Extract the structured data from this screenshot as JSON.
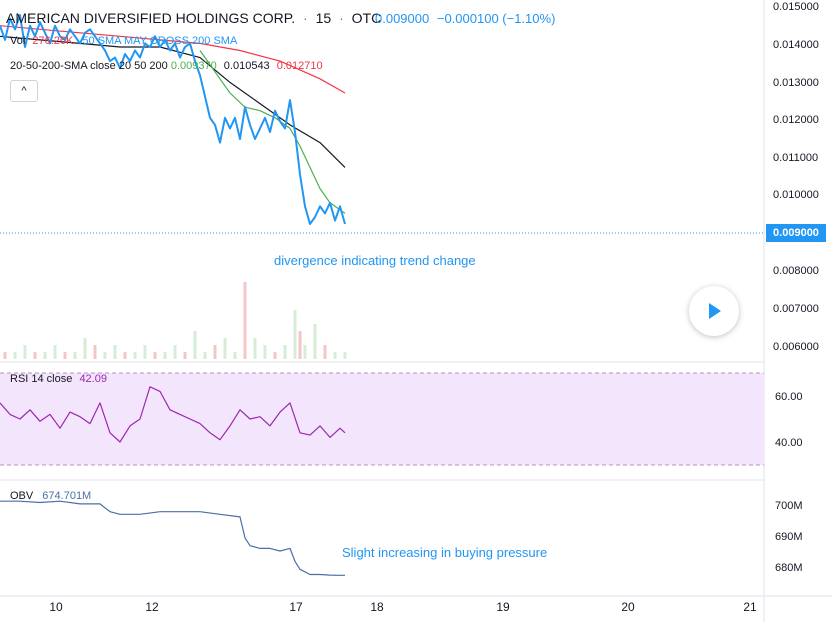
{
  "header": {
    "symbol": "AMERICAN DIVERSIFIED HOLDINGS CORP.",
    "interval": "15",
    "exchange": "OTC",
    "sep": "·",
    "price": "0.009000",
    "change": "−0.000100 (−1.10%)"
  },
  "volume": {
    "label": "Vol",
    "value": "276.26K",
    "overlay": "50 SMA MAY CROSS 200 SMA"
  },
  "sma": {
    "label": "20-50-200-SMA close 20 50 200",
    "v20": "0.009370",
    "v50": "0.010543",
    "v200": "0.012710"
  },
  "collapse_glyph": "^",
  "rsi": {
    "label": "RSI 14 close",
    "value": "42.09"
  },
  "obv": {
    "label": "OBV",
    "value": "674.701M"
  },
  "annotations": {
    "divergence": "divergence indicating trend change",
    "buying": "Slight increasing in buying pressure"
  },
  "last_price_tag": "0.009000",
  "colors": {
    "price": "#2196f3",
    "sma20": "#4caf50",
    "sma50": "#131722",
    "sma200": "#f23645",
    "rsi": "#9c27b0",
    "rsi_band": "#f3e5fc",
    "obv": "#4a6fa5",
    "volume_up": "#d6ecd6",
    "volume_down": "#f6c6c6"
  },
  "chart_data": {
    "type": "line",
    "x_axis": {
      "ticks": [
        "10",
        "12",
        "17",
        "18",
        "19",
        "20",
        "21"
      ]
    },
    "price": {
      "ylim": [
        0.0055,
        0.0151
      ],
      "ticks": [
        "0.015000",
        "0.014000",
        "0.013000",
        "0.012000",
        "0.011000",
        "0.010000",
        "0.009000",
        "0.008000",
        "0.007000",
        "0.006000"
      ],
      "series": [
        {
          "x": [
            0,
            5,
            10,
            15,
            20,
            25,
            30,
            35,
            40,
            45,
            50,
            55,
            60,
            65,
            70,
            75,
            80,
            85,
            90,
            95,
            100,
            105,
            110,
            115,
            120,
            125,
            130,
            135,
            140,
            145,
            150,
            155,
            160,
            165,
            170,
            175,
            180,
            185,
            190,
            195,
            200,
            205,
            210,
            215,
            220,
            225,
            230,
            235,
            240,
            245,
            250,
            255,
            260,
            265,
            270,
            275,
            280,
            285,
            290,
            295,
            300,
            305,
            310,
            315,
            320,
            325,
            330,
            335,
            340,
            345
          ],
          "y": [
            0.0146,
            0.0142,
            0.0148,
            0.0145,
            0.0149,
            0.014,
            0.0146,
            0.0143,
            0.0147,
            0.0144,
            0.0141,
            0.0146,
            0.0143,
            0.0142,
            0.0145,
            0.0143,
            0.0141,
            0.0144,
            0.0145,
            0.0143,
            0.0141,
            0.0139,
            0.0136,
            0.0137,
            0.0134,
            0.0138,
            0.0136,
            0.0139,
            0.0137,
            0.0141,
            0.014,
            0.0143,
            0.014,
            0.0142,
            0.0139,
            0.0141,
            0.0137,
            0.014,
            0.0141,
            0.0136,
            0.0132,
            0.0126,
            0.012,
            0.0118,
            0.0113,
            0.012,
            0.0117,
            0.012,
            0.0114,
            0.0123,
            0.0118,
            0.0114,
            0.0117,
            0.012,
            0.0116,
            0.0122,
            0.0119,
            0.0117,
            0.0125,
            0.0116,
            0.0104,
            0.0095,
            0.009,
            0.0092,
            0.0095,
            0.0093,
            0.0096,
            0.0091,
            0.0095,
            0.009
          ]
        },
        {
          "x": [
            200,
            215,
            230,
            245,
            260,
            275,
            290,
            300,
            310,
            320,
            330,
            340,
            345
          ],
          "y": [
            0.0139,
            0.0133,
            0.0127,
            0.0123,
            0.0122,
            0.012,
            0.0117,
            0.0112,
            0.0106,
            0.01,
            0.0096,
            0.0094,
            0.0093
          ]
        },
        {
          "x": [
            0,
            40,
            80,
            120,
            160,
            200,
            230,
            260,
            290,
            320,
            345
          ],
          "y": [
            0.0143,
            0.0142,
            0.0141,
            0.014,
            0.014,
            0.0137,
            0.013,
            0.0124,
            0.0118,
            0.0113,
            0.0106
          ]
        },
        {
          "x": [
            0,
            40,
            80,
            120,
            160,
            200,
            240,
            280,
            320,
            345
          ],
          "y": [
            0.0146,
            0.0145,
            0.0144,
            0.0143,
            0.0142,
            0.0141,
            0.0139,
            0.0136,
            0.0131,
            0.0127
          ]
        }
      ]
    },
    "volume": {
      "x": [
        5,
        15,
        25,
        35,
        45,
        55,
        65,
        75,
        85,
        95,
        105,
        115,
        125,
        135,
        145,
        155,
        165,
        175,
        185,
        195,
        205,
        215,
        225,
        235,
        245,
        255,
        265,
        275,
        285,
        295,
        300,
        305,
        315,
        325,
        335,
        345
      ],
      "values": [
        1,
        1,
        2,
        1,
        1,
        2,
        1,
        1,
        3,
        2,
        1,
        2,
        1,
        1,
        2,
        1,
        1,
        2,
        1,
        4,
        1,
        2,
        3,
        1,
        11,
        3,
        2,
        1,
        2,
        7,
        4,
        2,
        5,
        2,
        1,
        1
      ]
    },
    "rsi": {
      "ylim": [
        28,
        68
      ],
      "ticks": [
        "60.00",
        "40.00"
      ],
      "band": [
        30,
        70
      ],
      "x": [
        0,
        10,
        20,
        30,
        40,
        50,
        60,
        70,
        80,
        90,
        100,
        110,
        120,
        130,
        140,
        150,
        160,
        170,
        180,
        190,
        200,
        210,
        220,
        230,
        240,
        250,
        260,
        270,
        280,
        290,
        300,
        310,
        320,
        330,
        340,
        345
      ],
      "y": [
        55,
        50,
        48,
        52,
        47,
        50,
        44,
        51,
        49,
        46,
        55,
        42,
        38,
        45,
        48,
        62,
        60,
        52,
        50,
        48,
        46,
        42,
        39,
        45,
        52,
        48,
        49,
        45,
        51,
        55,
        42,
        41,
        45,
        40,
        44,
        42
      ]
    },
    "obv": {
      "ylim": [
        671,
        705
      ],
      "ticks": [
        "700M",
        "690M",
        "680M"
      ],
      "x": [
        0,
        20,
        40,
        60,
        80,
        100,
        110,
        120,
        140,
        160,
        180,
        200,
        220,
        240,
        245,
        250,
        260,
        270,
        280,
        290,
        295,
        300,
        310,
        320,
        330,
        340,
        345
      ],
      "y": [
        703,
        703,
        702.5,
        703,
        702,
        702,
        699,
        698,
        698,
        699,
        699,
        699,
        698,
        697,
        689,
        686,
        685,
        685,
        684,
        685,
        680,
        677,
        675,
        675,
        674.8,
        674.7,
        674.7
      ]
    }
  }
}
